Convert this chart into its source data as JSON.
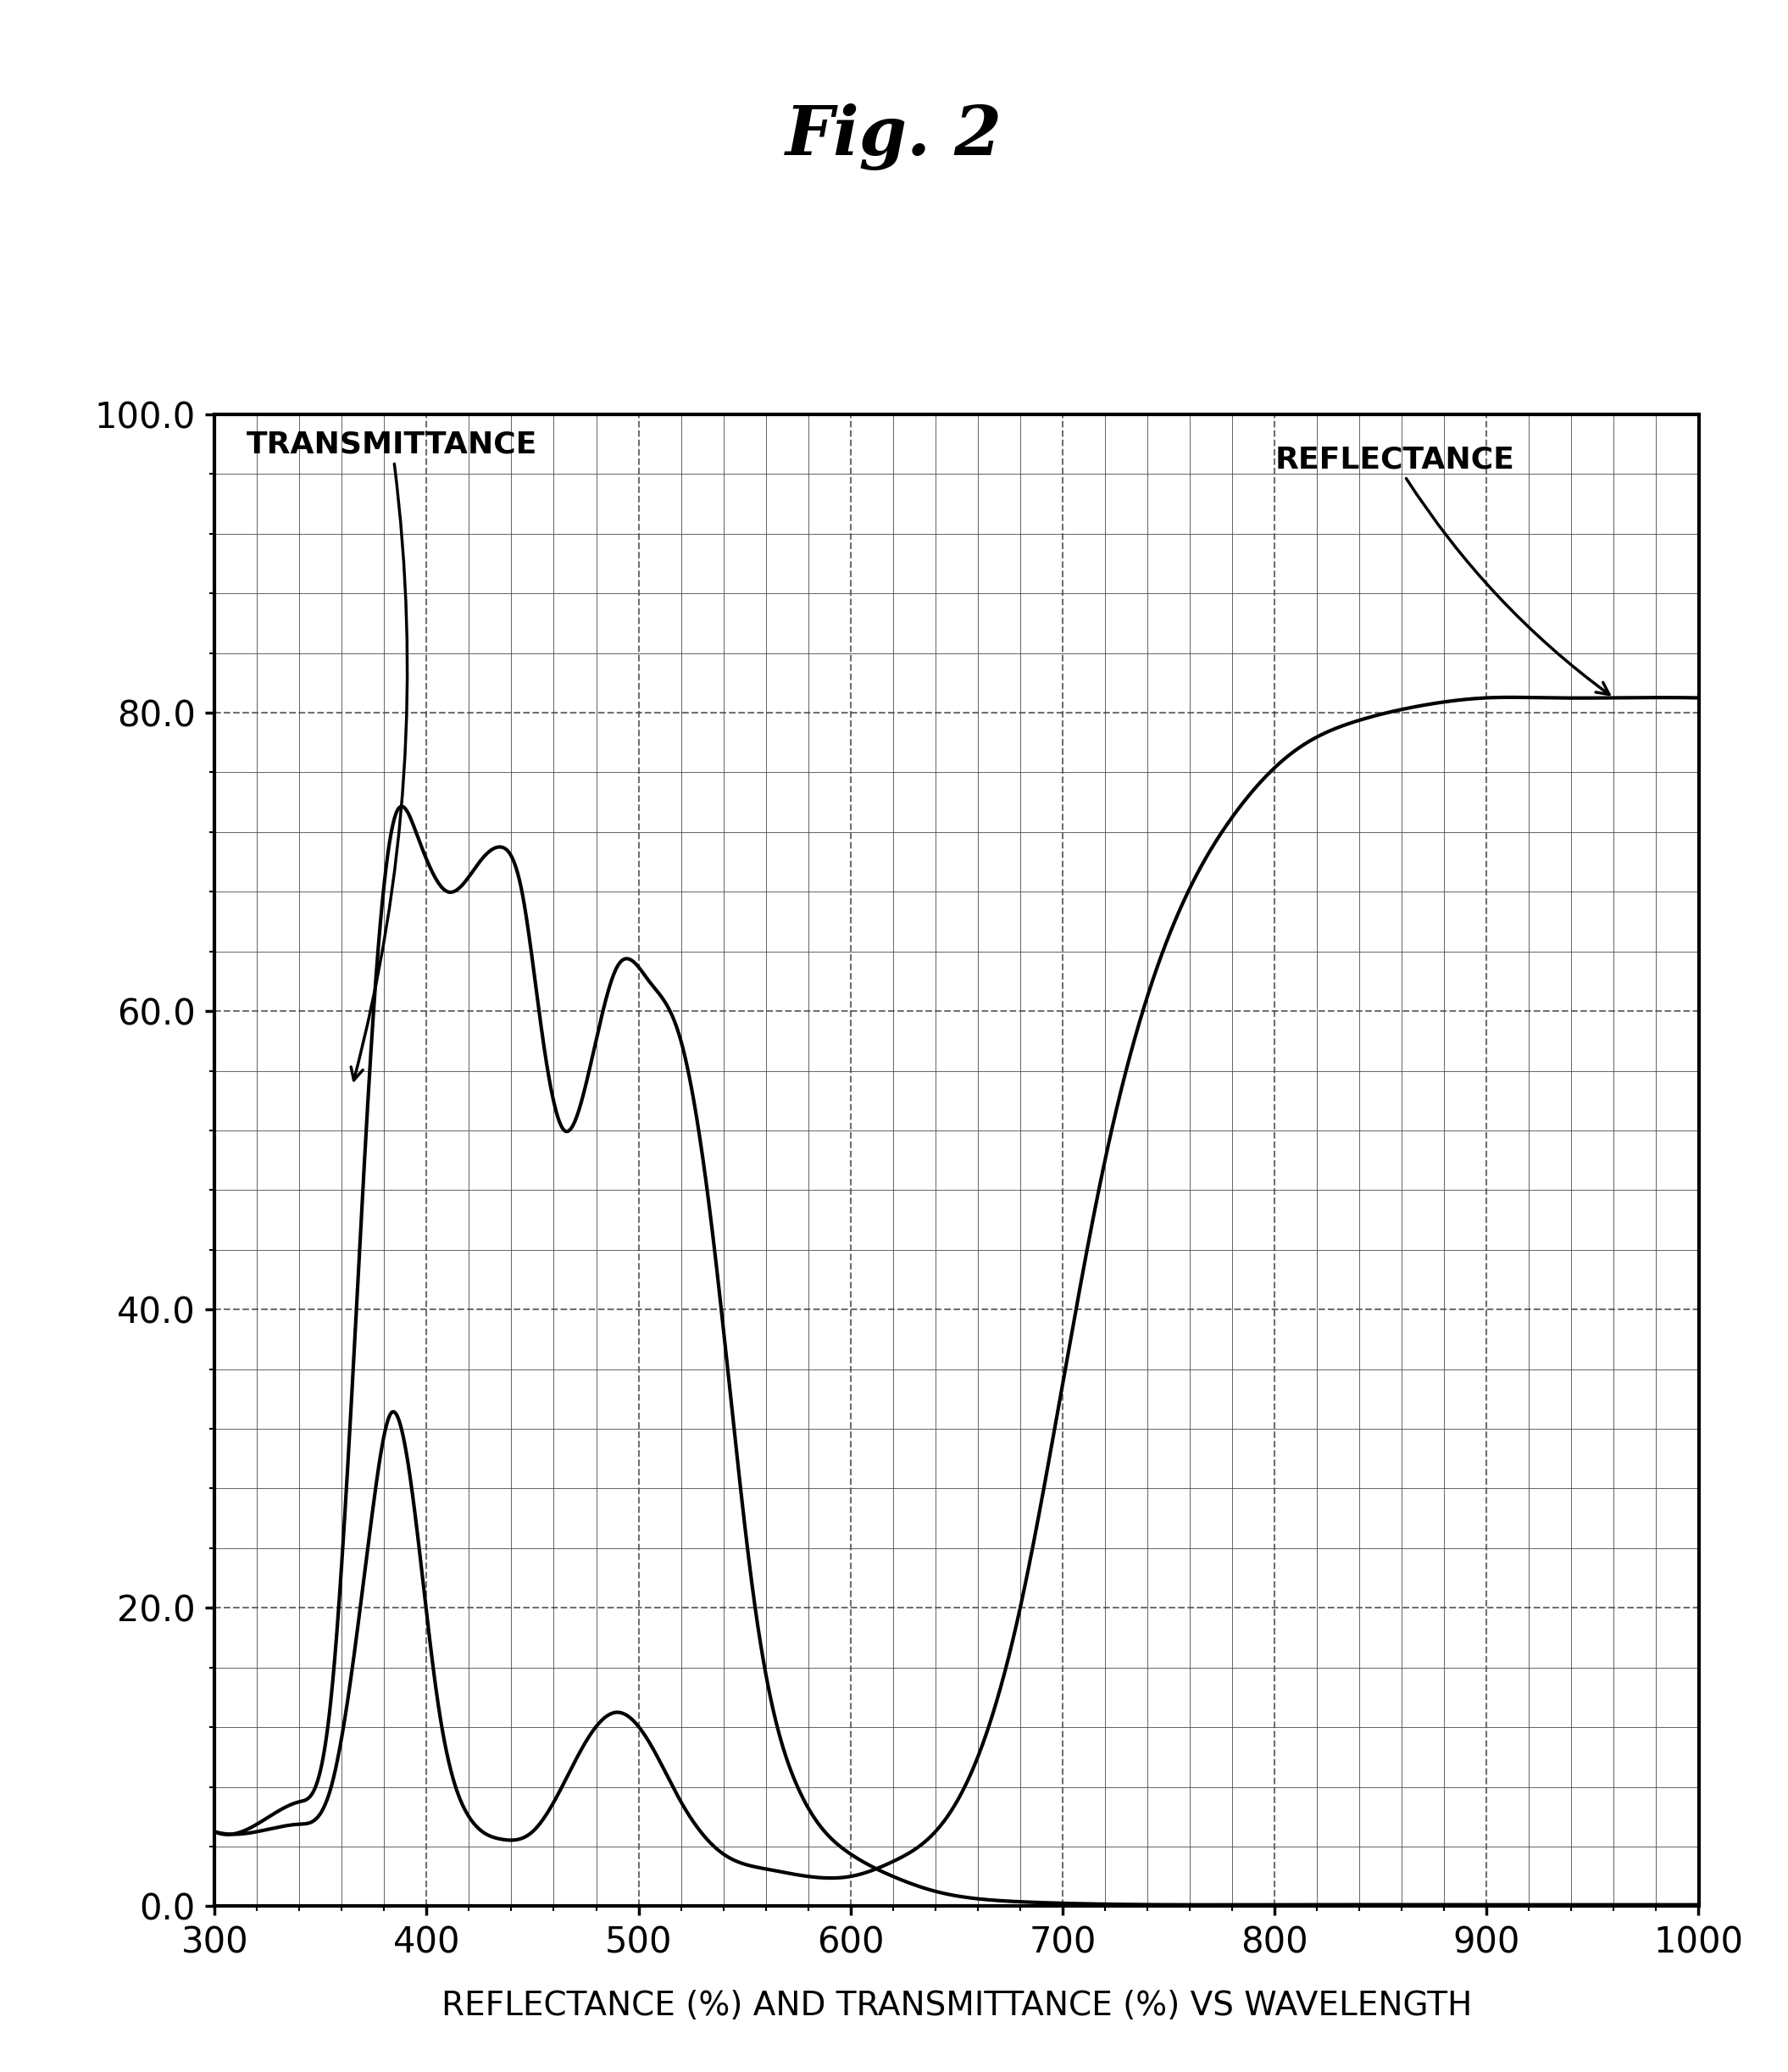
{
  "title": "Fig. 2",
  "xlabel": "REFLECTANCE (%) AND TRANSMITTANCE (%) VS WAVELENGTH",
  "ylim": [
    0,
    100
  ],
  "xlim": [
    300,
    1000
  ],
  "yticks": [
    0.0,
    20.0,
    40.0,
    60.0,
    80.0,
    100.0
  ],
  "xticks": [
    300,
    400,
    500,
    600,
    700,
    800,
    900,
    1000
  ],
  "background_color": "#ffffff",
  "line_color": "#000000",
  "grid_color": "#888888",
  "transmittance_label": "TRANSMITTANCE",
  "reflectance_label": "REFLECTANCE",
  "transmittance_x": [
    300,
    320,
    340,
    355,
    365,
    375,
    385,
    395,
    410,
    425,
    435,
    445,
    455,
    465,
    475,
    490,
    505,
    520,
    535,
    555,
    575,
    600,
    620,
    640,
    660,
    680,
    700,
    750,
    800,
    900,
    1000
  ],
  "transmittance_y": [
    5.0,
    5.5,
    7.0,
    14.0,
    35.0,
    60.0,
    73.0,
    72.0,
    68.0,
    70.0,
    71.0,
    68.0,
    58.0,
    52.0,
    55.0,
    63.0,
    62.0,
    58.0,
    45.0,
    20.0,
    8.0,
    3.5,
    2.0,
    1.0,
    0.5,
    0.3,
    0.2,
    0.1,
    0.1,
    0.1,
    0.1
  ],
  "reflectance_x": [
    300,
    320,
    340,
    355,
    365,
    375,
    383,
    393,
    405,
    420,
    435,
    450,
    462,
    475,
    490,
    505,
    520,
    540,
    560,
    580,
    600,
    620,
    640,
    660,
    680,
    700,
    720,
    750,
    780,
    810,
    840,
    870,
    900,
    930,
    960,
    1000
  ],
  "reflectance_y": [
    5.0,
    5.0,
    5.5,
    8.0,
    16.0,
    27.0,
    33.0,
    28.0,
    14.0,
    6.0,
    4.5,
    5.0,
    7.5,
    11.0,
    13.0,
    11.0,
    7.0,
    3.5,
    2.5,
    2.0,
    2.0,
    3.0,
    5.0,
    10.0,
    20.0,
    35.0,
    50.0,
    65.0,
    73.0,
    77.5,
    79.5,
    80.5,
    81.0,
    81.0,
    81.0,
    81.0
  ]
}
